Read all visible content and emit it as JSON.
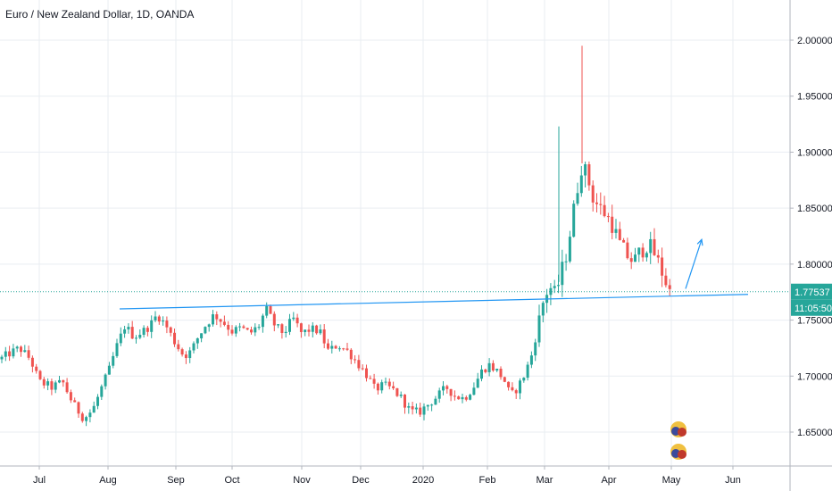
{
  "chart_data": {
    "type": "candlestick",
    "title": "Euro / New Zealand Dollar, 1D, OANDA",
    "xlabel": "",
    "ylabel": "",
    "ylim": [
      1.62,
      2.03
    ],
    "grid": true,
    "x_ticks": [
      "Jul",
      "Aug",
      "Sep",
      "Oct",
      "Nov",
      "Dec",
      "2020",
      "Feb",
      "Mar",
      "Apr",
      "May",
      "Jun"
    ],
    "y_ticks": [
      "2.00000",
      "1.95000",
      "1.90000",
      "1.85000",
      "1.80000",
      "1.75000",
      "1.70000",
      "1.65000"
    ],
    "last_price": "1.77537",
    "countdown": "11:05:50",
    "price_path": [
      {
        "x": 0,
        "y": 1.715
      },
      {
        "x": 10,
        "y": 1.72
      },
      {
        "x": 22,
        "y": 1.725
      },
      {
        "x": 34,
        "y": 1.715
      },
      {
        "x": 44,
        "y": 1.695
      },
      {
        "x": 58,
        "y": 1.69
      },
      {
        "x": 70,
        "y": 1.695
      },
      {
        "x": 82,
        "y": 1.675
      },
      {
        "x": 94,
        "y": 1.662
      },
      {
        "x": 104,
        "y": 1.67
      },
      {
        "x": 114,
        "y": 1.69
      },
      {
        "x": 122,
        "y": 1.705
      },
      {
        "x": 130,
        "y": 1.725
      },
      {
        "x": 140,
        "y": 1.745
      },
      {
        "x": 150,
        "y": 1.735
      },
      {
        "x": 160,
        "y": 1.74
      },
      {
        "x": 168,
        "y": 1.745
      },
      {
        "x": 176,
        "y": 1.755
      },
      {
        "x": 186,
        "y": 1.745
      },
      {
        "x": 196,
        "y": 1.73
      },
      {
        "x": 206,
        "y": 1.718
      },
      {
        "x": 214,
        "y": 1.722
      },
      {
        "x": 222,
        "y": 1.735
      },
      {
        "x": 230,
        "y": 1.745
      },
      {
        "x": 240,
        "y": 1.755
      },
      {
        "x": 250,
        "y": 1.748
      },
      {
        "x": 260,
        "y": 1.74
      },
      {
        "x": 270,
        "y": 1.743
      },
      {
        "x": 280,
        "y": 1.738
      },
      {
        "x": 290,
        "y": 1.745
      },
      {
        "x": 298,
        "y": 1.76
      },
      {
        "x": 308,
        "y": 1.745
      },
      {
        "x": 318,
        "y": 1.738
      },
      {
        "x": 328,
        "y": 1.752
      },
      {
        "x": 338,
        "y": 1.738
      },
      {
        "x": 348,
        "y": 1.742
      },
      {
        "x": 358,
        "y": 1.74
      },
      {
        "x": 368,
        "y": 1.722
      },
      {
        "x": 378,
        "y": 1.728
      },
      {
        "x": 390,
        "y": 1.722
      },
      {
        "x": 400,
        "y": 1.712
      },
      {
        "x": 410,
        "y": 1.702
      },
      {
        "x": 420,
        "y": 1.688
      },
      {
        "x": 430,
        "y": 1.692
      },
      {
        "x": 440,
        "y": 1.688
      },
      {
        "x": 450,
        "y": 1.68
      },
      {
        "x": 460,
        "y": 1.668
      },
      {
        "x": 470,
        "y": 1.668
      },
      {
        "x": 480,
        "y": 1.675
      },
      {
        "x": 490,
        "y": 1.682
      },
      {
        "x": 500,
        "y": 1.69
      },
      {
        "x": 510,
        "y": 1.682
      },
      {
        "x": 520,
        "y": 1.68
      },
      {
        "x": 530,
        "y": 1.69
      },
      {
        "x": 540,
        "y": 1.705
      },
      {
        "x": 548,
        "y": 1.71
      },
      {
        "x": 556,
        "y": 1.705
      },
      {
        "x": 564,
        "y": 1.698
      },
      {
        "x": 572,
        "y": 1.682
      },
      {
        "x": 580,
        "y": 1.69
      },
      {
        "x": 588,
        "y": 1.702
      },
      {
        "x": 596,
        "y": 1.72
      },
      {
        "x": 604,
        "y": 1.75
      },
      {
        "x": 610,
        "y": 1.772
      },
      {
        "x": 616,
        "y": 1.78
      },
      {
        "x": 622,
        "y": 1.772
      },
      {
        "x": 628,
        "y": 1.79
      },
      {
        "x": 634,
        "y": 1.808
      },
      {
        "x": 640,
        "y": 1.835
      },
      {
        "x": 646,
        "y": 1.865
      },
      {
        "x": 652,
        "y": 1.89
      },
      {
        "x": 658,
        "y": 1.878
      },
      {
        "x": 664,
        "y": 1.86
      },
      {
        "x": 670,
        "y": 1.852
      },
      {
        "x": 678,
        "y": 1.845
      },
      {
        "x": 686,
        "y": 1.835
      },
      {
        "x": 694,
        "y": 1.818
      },
      {
        "x": 702,
        "y": 1.808
      },
      {
        "x": 710,
        "y": 1.802
      },
      {
        "x": 718,
        "y": 1.812
      },
      {
        "x": 726,
        "y": 1.818
      },
      {
        "x": 734,
        "y": 1.808
      },
      {
        "x": 742,
        "y": 1.792
      },
      {
        "x": 748,
        "y": 1.78
      },
      {
        "x": 752,
        "y": 1.772
      }
    ],
    "spikes": [
      {
        "x": 626,
        "y": 1.923
      },
      {
        "x": 652,
        "y": 1.995
      }
    ],
    "support_line": {
      "start": {
        "x": 134,
        "y": 1.76
      },
      "end": {
        "x": 838,
        "y": 1.773
      }
    },
    "price_line": {
      "y": 1.77537
    },
    "arrow": {
      "start": {
        "x": 768,
        "y": 1.778
      },
      "end": {
        "x": 786,
        "y": 1.822
      }
    },
    "x_tick_positions": [
      44,
      121,
      197,
      260,
      338,
      404,
      474,
      546,
      610,
      682,
      752,
      821
    ],
    "colors": {
      "up": "#26a69a",
      "down": "#ef5350",
      "line": "#2196f3",
      "price_dotted": "#26a69a",
      "grid": "#e9edf2"
    }
  }
}
